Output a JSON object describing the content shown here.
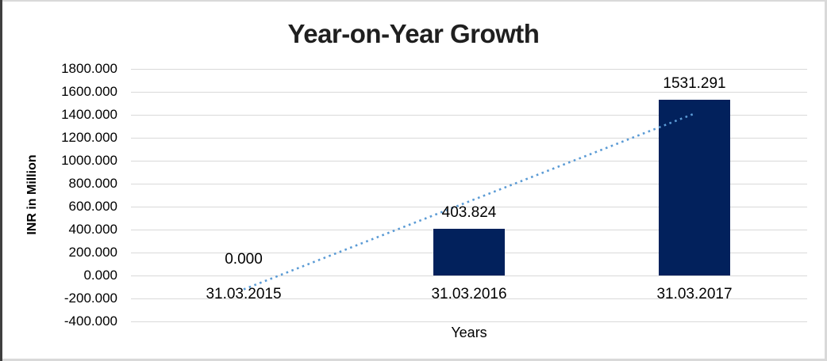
{
  "chart_data": {
    "type": "bar",
    "title": "Year-on-Year Growth",
    "xlabel": "Years",
    "ylabel": "INR in Million",
    "categories": [
      "31.03.2015",
      "31.03.2016",
      "31.03.2017"
    ],
    "series": [
      {
        "name": "INR in Million",
        "values": [
          0.0,
          403.824,
          1531.291
        ]
      }
    ],
    "data_labels": [
      "0.000",
      "403.824",
      "1531.291"
    ],
    "ylim": [
      -400,
      1800
    ],
    "ytick_step": 200,
    "ytick_labels": [
      "1800.000",
      "1600.000",
      "1400.000",
      "1200.000",
      "1000.000",
      "800.000",
      "600.000",
      "400.000",
      "200.000",
      "0.000",
      "-200.000",
      "-400.000"
    ],
    "grid": true,
    "legend": "none",
    "trendline": {
      "type": "linear",
      "style": "dotted",
      "start_value": -120.6,
      "end_value": 1410.6
    },
    "colors": {
      "bar": "#02215C",
      "trendline": "#5B9BD5",
      "gridline": "#D9D9D9",
      "title_text": "#1F1F1F",
      "axis_text": "#000000"
    }
  }
}
